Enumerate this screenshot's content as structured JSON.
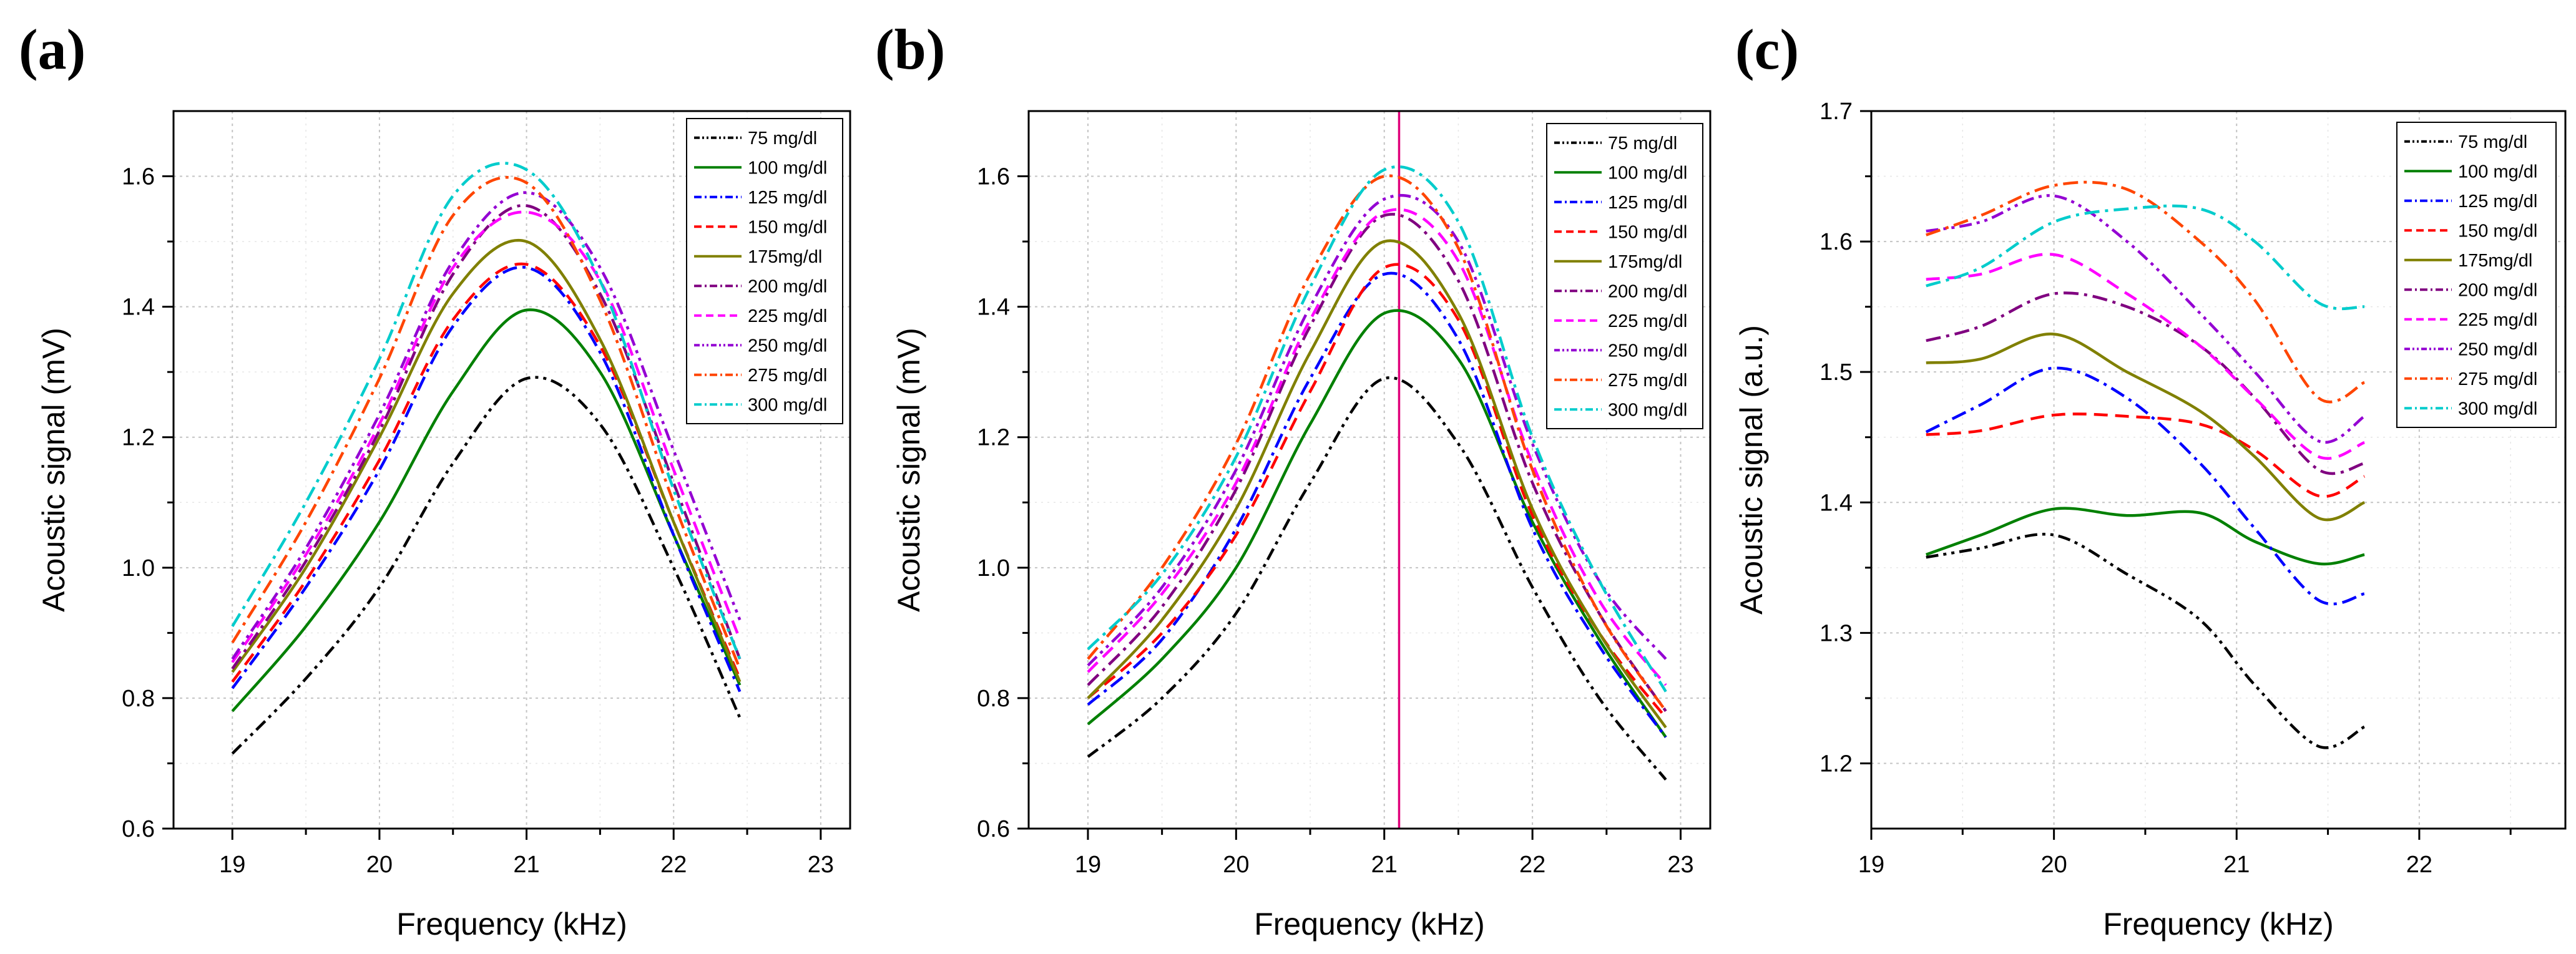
{
  "chart_data": [
    {
      "type": "line",
      "panel_label": "(a)",
      "xlabel": "Frequency (kHz)",
      "ylabel": "Acoustic signal (mV)",
      "xlim": [
        18.6,
        23.2
      ],
      "ylim": [
        0.6,
        1.7
      ],
      "xticks": [
        19,
        20,
        21,
        22,
        23
      ],
      "yticks": [
        0.6,
        0.8,
        1.0,
        1.2,
        1.4,
        1.6
      ],
      "ytick_labels": [
        "0.6",
        "0.8",
        "1.0",
        "1.2",
        "1.4",
        "1.6"
      ],
      "vline": null,
      "legend_position": "top-right",
      "x": [
        19.0,
        19.5,
        20.0,
        20.5,
        21.0,
        21.5,
        22.0,
        22.45
      ],
      "series": [
        {
          "name": "75 mg/dl",
          "color": "#000000",
          "dash": "dashdotdot",
          "values": [
            0.715,
            0.83,
            0.97,
            1.16,
            1.29,
            1.22,
            1.0,
            0.77
          ]
        },
        {
          "name": "100 mg/dl",
          "color": "#008000",
          "dash": "solid",
          "values": [
            0.78,
            0.91,
            1.07,
            1.27,
            1.395,
            1.3,
            1.05,
            0.82
          ]
        },
        {
          "name": "125 mg/dl",
          "color": "#0000ff",
          "dash": "dashdot",
          "values": [
            0.815,
            0.97,
            1.15,
            1.37,
            1.46,
            1.33,
            1.05,
            0.81
          ]
        },
        {
          "name": "150 mg/dl",
          "color": "#ff0000",
          "dash": "dash",
          "values": [
            0.825,
            0.98,
            1.165,
            1.38,
            1.465,
            1.34,
            1.07,
            0.83
          ]
        },
        {
          "name": "175mg/dl",
          "color": "#808000",
          "dash": "solid",
          "values": [
            0.84,
            1.0,
            1.2,
            1.42,
            1.5,
            1.35,
            1.07,
            0.825
          ]
        },
        {
          "name": "200 mg/dl",
          "color": "#800080",
          "dash": "dashdot",
          "values": [
            0.845,
            1.01,
            1.21,
            1.45,
            1.555,
            1.42,
            1.13,
            0.86
          ]
        },
        {
          "name": "225 mg/dl",
          "color": "#ff00ff",
          "dash": "dash",
          "values": [
            0.855,
            1.02,
            1.22,
            1.46,
            1.545,
            1.44,
            1.15,
            0.89
          ]
        },
        {
          "name": "250 mg/dl",
          "color": "#9400d3",
          "dash": "dashdotdot",
          "values": [
            0.86,
            1.03,
            1.235,
            1.47,
            1.575,
            1.46,
            1.18,
            0.92
          ]
        },
        {
          "name": "275 mg/dl",
          "color": "#ff4500",
          "dash": "dashdot",
          "values": [
            0.885,
            1.07,
            1.29,
            1.54,
            1.59,
            1.41,
            1.1,
            0.845
          ]
        },
        {
          "name": "300 mg/dl",
          "color": "#00cccc",
          "dash": "dashdot",
          "values": [
            0.91,
            1.1,
            1.32,
            1.57,
            1.61,
            1.44,
            1.12,
            0.86
          ]
        }
      ]
    },
    {
      "type": "line",
      "panel_label": "(b)",
      "xlabel": "Frequency (kHz)",
      "ylabel": "Acoustic signal (mV)",
      "xlim": [
        18.6,
        23.2
      ],
      "ylim": [
        0.6,
        1.7
      ],
      "xticks": [
        19,
        20,
        21,
        22,
        23
      ],
      "yticks": [
        0.6,
        0.8,
        1.0,
        1.2,
        1.4,
        1.6
      ],
      "ytick_labels": [
        "0.6",
        "0.8",
        "1.0",
        "1.2",
        "1.4",
        "1.6"
      ],
      "vline": 21.1,
      "vline_color": "#e0007a",
      "legend_position": "top-right",
      "x": [
        19.0,
        19.5,
        20.0,
        20.5,
        21.0,
        21.5,
        22.0,
        22.45,
        22.9
      ],
      "series": [
        {
          "name": "75 mg/dl",
          "color": "#000000",
          "dash": "dashdotdot",
          "values": [
            0.71,
            0.8,
            0.93,
            1.13,
            1.29,
            1.19,
            0.97,
            0.8,
            0.675
          ]
        },
        {
          "name": "100 mg/dl",
          "color": "#008000",
          "dash": "solid",
          "values": [
            0.76,
            0.86,
            1.0,
            1.22,
            1.39,
            1.32,
            1.07,
            0.89,
            0.74
          ]
        },
        {
          "name": "125 mg/dl",
          "color": "#0000ff",
          "dash": "dashdot",
          "values": [
            0.79,
            0.89,
            1.06,
            1.29,
            1.45,
            1.35,
            1.06,
            0.88,
            0.74
          ]
        },
        {
          "name": "150 mg/dl",
          "color": "#ff0000",
          "dash": "dash",
          "values": [
            0.8,
            0.9,
            1.05,
            1.27,
            1.46,
            1.38,
            1.08,
            0.9,
            0.77
          ]
        },
        {
          "name": "175mg/dl",
          "color": "#808000",
          "dash": "solid",
          "values": [
            0.8,
            0.92,
            1.09,
            1.33,
            1.5,
            1.39,
            1.09,
            0.9,
            0.755
          ]
        },
        {
          "name": "200 mg/dl",
          "color": "#800080",
          "dash": "dashdot",
          "values": [
            0.82,
            0.94,
            1.12,
            1.37,
            1.54,
            1.44,
            1.13,
            0.93,
            0.78
          ]
        },
        {
          "name": "225 mg/dl",
          "color": "#ff00ff",
          "dash": "dash",
          "values": [
            0.84,
            0.96,
            1.13,
            1.38,
            1.545,
            1.47,
            1.16,
            0.95,
            0.82
          ]
        },
        {
          "name": "250 mg/dl",
          "color": "#9400d3",
          "dash": "dashdotdot",
          "values": [
            0.85,
            0.97,
            1.15,
            1.4,
            1.565,
            1.5,
            1.19,
            0.98,
            0.86
          ]
        },
        {
          "name": "275 mg/dl",
          "color": "#ff4500",
          "dash": "dashdot",
          "values": [
            0.86,
            1.0,
            1.19,
            1.45,
            1.6,
            1.49,
            1.15,
            0.93,
            0.78
          ]
        },
        {
          "name": "300 mg/dl",
          "color": "#00cccc",
          "dash": "dashdot",
          "values": [
            0.875,
            0.99,
            1.17,
            1.43,
            1.61,
            1.53,
            1.2,
            0.98,
            0.81
          ]
        }
      ]
    },
    {
      "type": "line",
      "panel_label": "(c)",
      "xlabel": "Frequency (kHz)",
      "ylabel": "Acoustic signal (a.u.)",
      "xlim": [
        19.0,
        22.8
      ],
      "ylim": [
        1.15,
        1.7
      ],
      "xticks": [
        19,
        20,
        21,
        22
      ],
      "yticks": [
        1.2,
        1.3,
        1.4,
        1.5,
        1.6,
        1.7
      ],
      "ytick_labels": [
        "1.2",
        "1.3",
        "1.4",
        "1.5",
        "1.6",
        "1.7"
      ],
      "vline": null,
      "legend_position": "top-right",
      "x": [
        19.3,
        19.6,
        20.0,
        20.4,
        20.8,
        21.1,
        21.45,
        21.7
      ],
      "series": [
        {
          "name": "75 mg/dl",
          "color": "#000000",
          "dash": "dashdotdot",
          "values": [
            1.358,
            1.365,
            1.375,
            1.345,
            1.31,
            1.26,
            1.213,
            1.228
          ]
        },
        {
          "name": "100 mg/dl",
          "color": "#008000",
          "dash": "solid",
          "values": [
            1.36,
            1.375,
            1.395,
            1.39,
            1.392,
            1.37,
            1.353,
            1.36
          ]
        },
        {
          "name": "125 mg/dl",
          "color": "#0000ff",
          "dash": "dashdot",
          "values": [
            1.454,
            1.475,
            1.503,
            1.48,
            1.43,
            1.38,
            1.325,
            1.33
          ]
        },
        {
          "name": "150 mg/dl",
          "color": "#ff0000",
          "dash": "dash",
          "values": [
            1.452,
            1.455,
            1.467,
            1.466,
            1.46,
            1.44,
            1.405,
            1.42
          ]
        },
        {
          "name": "175mg/dl",
          "color": "#808000",
          "dash": "solid",
          "values": [
            1.507,
            1.51,
            1.529,
            1.5,
            1.47,
            1.435,
            1.388,
            1.4
          ]
        },
        {
          "name": "200 mg/dl",
          "color": "#800080",
          "dash": "dashdot",
          "values": [
            1.524,
            1.535,
            1.56,
            1.55,
            1.52,
            1.48,
            1.425,
            1.43
          ]
        },
        {
          "name": "225 mg/dl",
          "color": "#ff00ff",
          "dash": "dash",
          "values": [
            1.571,
            1.575,
            1.59,
            1.56,
            1.52,
            1.48,
            1.435,
            1.446
          ]
        },
        {
          "name": "250 mg/dl",
          "color": "#9400d3",
          "dash": "dashdotdot",
          "values": [
            1.608,
            1.615,
            1.635,
            1.6,
            1.545,
            1.5,
            1.447,
            1.466
          ]
        },
        {
          "name": "275 mg/dl",
          "color": "#ff4500",
          "dash": "dashdot",
          "values": [
            1.605,
            1.62,
            1.643,
            1.64,
            1.6,
            1.555,
            1.48,
            1.492
          ]
        },
        {
          "name": "300 mg/dl",
          "color": "#00cccc",
          "dash": "dashdot",
          "values": [
            1.566,
            1.58,
            1.615,
            1.625,
            1.625,
            1.6,
            1.553,
            1.55
          ]
        }
      ]
    }
  ]
}
